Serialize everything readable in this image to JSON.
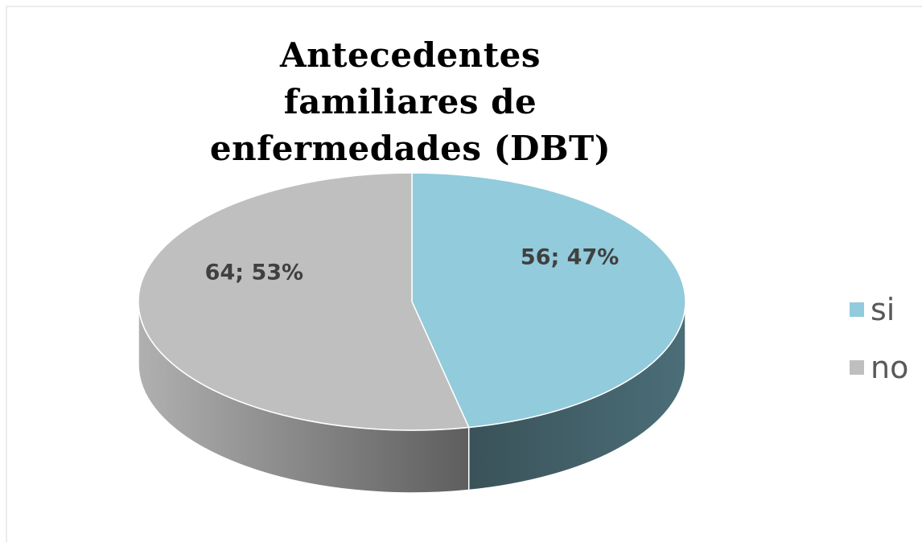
{
  "chart_data": {
    "type": "pie",
    "title": "Antecedentes familiares de enfermedades (DBT)",
    "categories": [
      "si",
      "no"
    ],
    "values": [
      56,
      64
    ],
    "value_labels": [
      "56; 47%",
      "64; 53%"
    ],
    "colors": [
      "#92cbdb",
      "#bfbfbf"
    ],
    "legend": "right"
  }
}
